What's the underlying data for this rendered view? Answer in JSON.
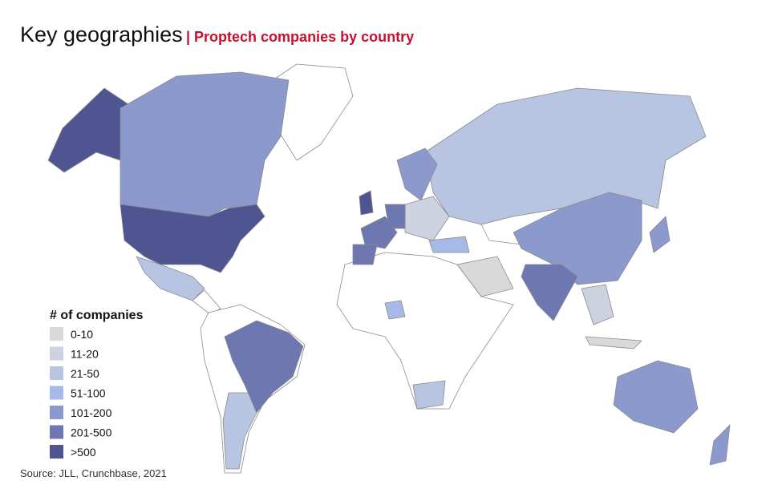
{
  "header": {
    "title": "Key geographies",
    "subtitle": "| Proptech companies by country"
  },
  "legend": {
    "title": "# of companies",
    "items": [
      {
        "label": "0-10",
        "color": "#d9d9d9"
      },
      {
        "label": "11-20",
        "color": "#cdd2e0"
      },
      {
        "label": "21-50",
        "color": "#b7c5e2"
      },
      {
        "label": "51-100",
        "color": "#a7b9e6"
      },
      {
        "label": "101-200",
        "color": "#8b99cc"
      },
      {
        "label": "201-500",
        "color": "#6d77b0"
      },
      {
        "label": ">500",
        "color": "#4e5590"
      }
    ]
  },
  "source": "Source: JLL, Crunchbase, 2021"
}
